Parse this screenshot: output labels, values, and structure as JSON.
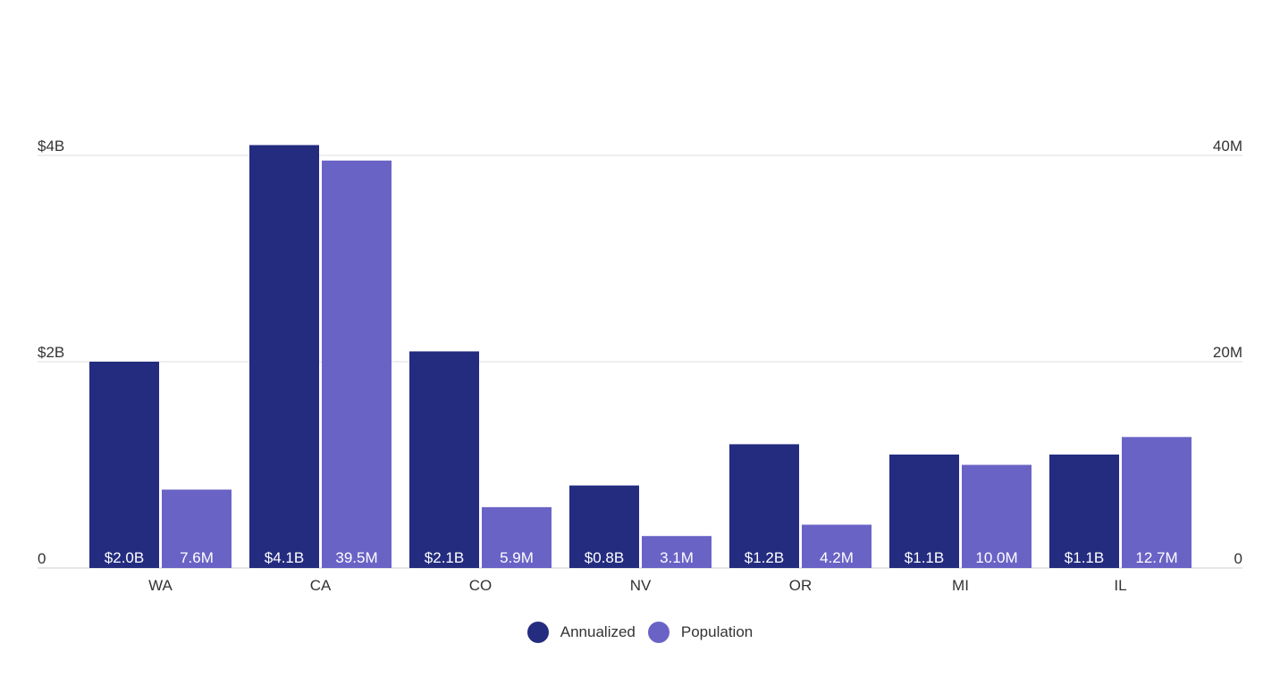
{
  "chart_data": {
    "type": "bar",
    "categories": [
      "WA",
      "CA",
      "CO",
      "NV",
      "OR",
      "MI",
      "IL"
    ],
    "series": [
      {
        "name": "Annualized",
        "axis": "left",
        "color": "#242c80",
        "values": [
          2.0,
          4.1,
          2.1,
          0.8,
          1.2,
          1.1,
          1.1
        ],
        "labels": [
          "$2.0B",
          "$4.1B",
          "$2.1B",
          "$0.8B",
          "$1.2B",
          "$1.1B",
          "$1.1B"
        ]
      },
      {
        "name": "Population",
        "axis": "right",
        "color": "#6a63c6",
        "values": [
          7.6,
          39.5,
          5.9,
          3.1,
          4.2,
          10.0,
          12.7
        ],
        "labels": [
          "7.6M",
          "39.5M",
          "5.9M",
          "3.1M",
          "4.2M",
          "10.0M",
          "12.7M"
        ]
      }
    ],
    "y_left": {
      "ylim": [
        0,
        4
      ],
      "ticks": [
        0,
        2,
        4
      ],
      "tick_labels": [
        "0",
        "$2B",
        "$4B"
      ]
    },
    "y_right": {
      "ylim": [
        0,
        40
      ],
      "ticks": [
        0,
        20,
        40
      ],
      "tick_labels": [
        "0",
        "20M",
        "40M"
      ]
    },
    "grid": true,
    "legend_position": "bottom-center"
  }
}
